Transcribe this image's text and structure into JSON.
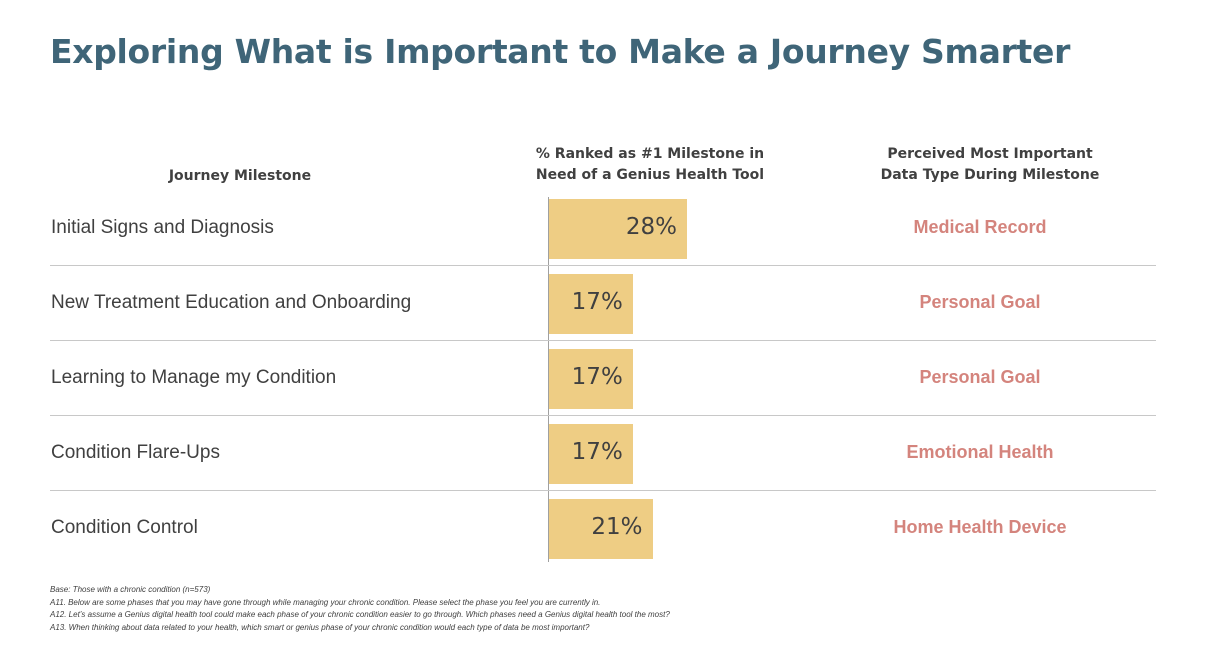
{
  "title": "Exploring What is Important to Make a Journey Smarter",
  "headers": {
    "milestone": "Journey Milestone",
    "pct_line1": "% Ranked as #1 Milestone in",
    "pct_line2": "Need of a Genius Health Tool",
    "data_line1": "Perceived Most Important",
    "data_line2": "Data Type During Milestone"
  },
  "rows": [
    {
      "milestone": "Initial Signs and Diagnosis",
      "pct_label": "28%",
      "data_type": "Medical Record"
    },
    {
      "milestone": "New Treatment Education and Onboarding",
      "pct_label": "17%",
      "data_type": "Personal Goal"
    },
    {
      "milestone": "Learning to Manage my Condition",
      "pct_label": "17%",
      "data_type": "Personal Goal"
    },
    {
      "milestone": "Condition Flare-Ups",
      "pct_label": "17%",
      "data_type": "Emotional Health"
    },
    {
      "milestone": "Condition Control",
      "pct_label": "21%",
      "data_type": "Home Health Device"
    }
  ],
  "colors": {
    "title": "#3f6578",
    "bar": "#eecd84",
    "data_type": "#d4847d",
    "text": "#404040"
  },
  "footnotes": [
    "Base: Those with a chronic condition (n=573)",
    "A11. Below are some phases that you may have gone through while managing your chronic condition. Please select the phase you feel you are currently in.",
    "A12. Let’s assume a Genius digital health tool could make each phase of your chronic condition easier to go through. Which phases need a Genius digital health tool the most?",
    "A13. When thinking about data related to your health, which smart or genius phase of your chronic condition would each type of data be most important?"
  ],
  "chart_data": {
    "type": "bar",
    "orientation": "horizontal",
    "title": "% Ranked as #1 Milestone in Need of a Genius Health Tool",
    "categories": [
      "Initial Signs and Diagnosis",
      "New Treatment Education and Onboarding",
      "Learning to Manage my Condition",
      "Condition Flare-Ups",
      "Condition Control"
    ],
    "values": [
      28,
      17,
      17,
      17,
      21
    ],
    "unit": "%",
    "xlim": [
      0,
      100
    ],
    "grid": false
  }
}
